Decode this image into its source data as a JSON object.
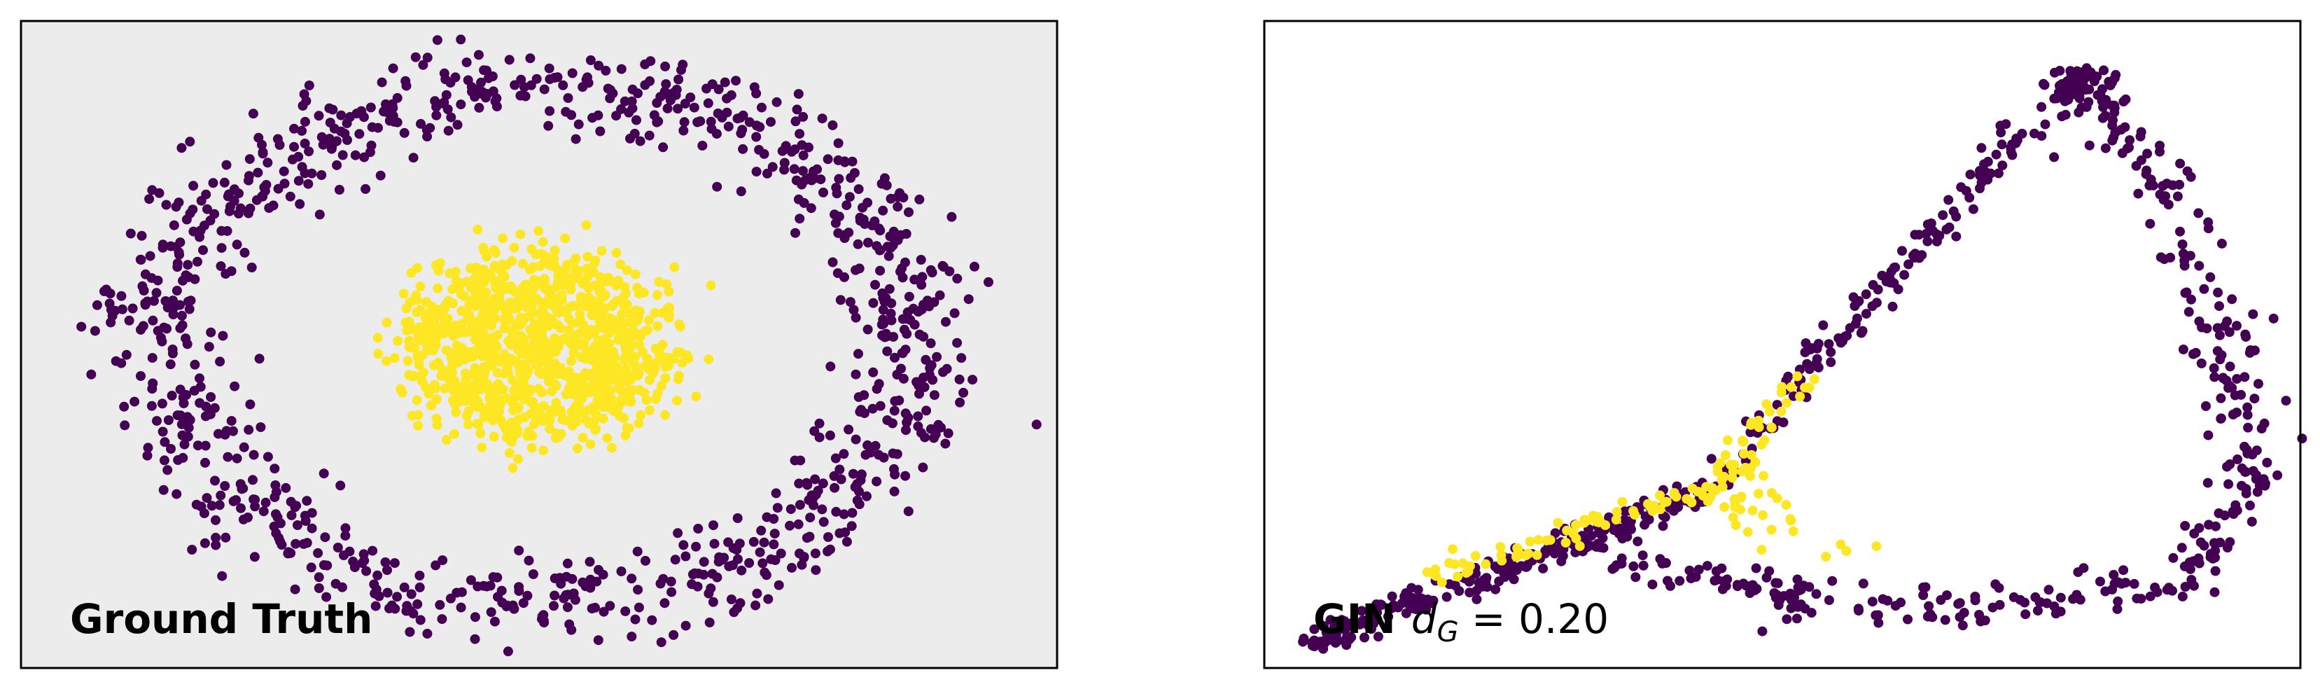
{
  "chart_data": [
    {
      "type": "scatter",
      "panel": "ground-truth",
      "label": "Ground Truth",
      "background": "#ececec",
      "grid": false,
      "axes_visible": false,
      "legend": "none",
      "classes": [
        {
          "class": 0,
          "color": "#440154",
          "shape": "ring",
          "center": [
            0.0,
            0.0
          ],
          "radius": [
            1.0,
            1.0
          ],
          "noise": 0.09,
          "points": 1000
        },
        {
          "class": 1,
          "color": "#fde725",
          "shape": "disc",
          "center": [
            0.0,
            0.0
          ],
          "radius": [
            0.35,
            0.35
          ],
          "noise": 0.06,
          "points": 1000
        }
      ],
      "xlim": [
        -1.38,
        1.38
      ],
      "ylim": [
        -1.25,
        1.25
      ]
    },
    {
      "type": "scatter",
      "panel": "gin-embedding",
      "label": {
        "model": "GIN",
        "metric": "d",
        "metric_sub": "G",
        "operator": " = ",
        "value": "0.20"
      },
      "background": "#ffffff",
      "grid": false,
      "axes_visible": false,
      "legend": "none",
      "classes": [
        {
          "class": 0,
          "color": "#440154",
          "segments": [
            {
              "from": [
                0.0,
                0.0
              ],
              "to": [
                0.43,
                0.26
              ],
              "points": 230,
              "spread": 0.012
            },
            {
              "from": [
                0.43,
                0.26
              ],
              "to": [
                0.53,
                0.47
              ],
              "points": 40,
              "spread": 0.01
            },
            {
              "from": [
                0.53,
                0.47
              ],
              "to": [
                0.8,
                0.93
              ],
              "points": 110,
              "spread": 0.012
            },
            {
              "from": [
                0.8,
                0.93
              ],
              "to": [
                0.82,
                0.95
              ],
              "points": 60,
              "spread": 0.012
            },
            {
              "from": [
                0.82,
                0.95
              ],
              "to": [
                0.92,
                0.72
              ],
              "points": 60,
              "spread": 0.018
            },
            {
              "from": [
                0.92,
                0.72
              ],
              "to": [
                1.0,
                0.3
              ],
              "points": 80,
              "spread": 0.02
            },
            {
              "from": [
                1.0,
                0.3
              ],
              "to": [
                0.92,
                0.1
              ],
              "points": 60,
              "spread": 0.018
            },
            {
              "from": [
                0.92,
                0.1
              ],
              "to": [
                0.6,
                0.05
              ],
              "points": 70,
              "spread": 0.02
            },
            {
              "from": [
                0.6,
                0.05
              ],
              "to": [
                0.3,
                0.15
              ],
              "points": 80,
              "spread": 0.02
            }
          ]
        },
        {
          "class": 1,
          "color": "#fde725",
          "segments": [
            {
              "from": [
                0.12,
                0.11
              ],
              "to": [
                0.43,
                0.27
              ],
              "points": 70,
              "spread": 0.01
            },
            {
              "from": [
                0.43,
                0.27
              ],
              "to": [
                0.52,
                0.45
              ],
              "points": 40,
              "spread": 0.012
            },
            {
              "from": [
                0.43,
                0.25
              ],
              "to": [
                0.49,
                0.22
              ],
              "points": 25,
              "spread": 0.02
            },
            {
              "from": [
                0.49,
                0.16
              ],
              "to": [
                0.58,
                0.16
              ],
              "points": 6,
              "spread": 0.02
            }
          ]
        }
      ],
      "xlim": [
        0.0,
        1.0
      ],
      "ylim": [
        0.0,
        1.0
      ]
    }
  ]
}
